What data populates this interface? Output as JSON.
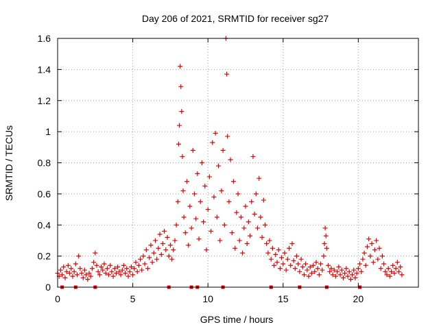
{
  "chart_data": {
    "type": "scatter",
    "title": "Day 206 of 2021, SRMTID for receiver sg27",
    "xlabel": "GPS time / hours",
    "ylabel": "SRMTID / TECUs",
    "xlim": [
      0,
      24
    ],
    "ylim": [
      0,
      1.6
    ],
    "xticks": [
      0,
      5,
      10,
      15,
      20
    ],
    "xtick_labels": [
      "0",
      "5",
      "10",
      "15",
      "20"
    ],
    "yticks": [
      0,
      0.2,
      0.4,
      0.6,
      0.8,
      1.0,
      1.2,
      1.4,
      1.6
    ],
    "ytick_labels": [
      "0",
      "0.2",
      "0.4",
      "0.6",
      "0.8",
      "1",
      "1.2",
      "1.4",
      "1.6"
    ],
    "grid": true,
    "marker": "plus",
    "series": [
      {
        "name": "SRMTID",
        "color": "#e00000",
        "points": [
          [
            0.0,
            0.09
          ],
          [
            0.1,
            0.07
          ],
          [
            0.2,
            0.11
          ],
          [
            0.3,
            0.08
          ],
          [
            0.4,
            0.13
          ],
          [
            0.5,
            0.06
          ],
          [
            0.6,
            0.1
          ],
          [
            0.7,
            0.14
          ],
          [
            0.8,
            0.09
          ],
          [
            0.9,
            0.12
          ],
          [
            1.0,
            0.07
          ],
          [
            1.1,
            0.1
          ],
          [
            1.2,
            0.15
          ],
          [
            1.3,
            0.08
          ],
          [
            1.4,
            0.2
          ],
          [
            1.5,
            0.12
          ],
          [
            1.6,
            0.09
          ],
          [
            1.7,
            0.06
          ],
          [
            1.8,
            0.11
          ],
          [
            1.9,
            0.08
          ],
          [
            2.0,
            0.05
          ],
          [
            2.1,
            0.09
          ],
          [
            2.2,
            0.07
          ],
          [
            2.3,
            0.12
          ],
          [
            2.4,
            0.16
          ],
          [
            2.5,
            0.22
          ],
          [
            2.6,
            0.14
          ],
          [
            2.7,
            0.1
          ],
          [
            2.8,
            0.08
          ],
          [
            2.9,
            0.13
          ],
          [
            3.0,
            0.11
          ],
          [
            3.1,
            0.15
          ],
          [
            3.2,
            0.09
          ],
          [
            3.3,
            0.12
          ],
          [
            3.4,
            0.08
          ],
          [
            3.5,
            0.14
          ],
          [
            3.6,
            0.1
          ],
          [
            3.7,
            0.07
          ],
          [
            3.8,
            0.12
          ],
          [
            3.9,
            0.09
          ],
          [
            4.0,
            0.13
          ],
          [
            4.1,
            0.1
          ],
          [
            4.2,
            0.08
          ],
          [
            4.3,
            0.11
          ],
          [
            4.4,
            0.14
          ],
          [
            4.5,
            0.09
          ],
          [
            4.6,
            0.12
          ],
          [
            4.7,
            0.07
          ],
          [
            4.8,
            0.1
          ],
          [
            4.9,
            0.13
          ],
          [
            5.0,
            0.08
          ],
          [
            5.1,
            0.12
          ],
          [
            5.2,
            0.16
          ],
          [
            5.3,
            0.1
          ],
          [
            5.4,
            0.14
          ],
          [
            5.5,
            0.18
          ],
          [
            5.6,
            0.11
          ],
          [
            5.7,
            0.2
          ],
          [
            5.8,
            0.15
          ],
          [
            5.9,
            0.24
          ],
          [
            6.0,
            0.12
          ],
          [
            6.1,
            0.19
          ],
          [
            6.2,
            0.27
          ],
          [
            6.3,
            0.16
          ],
          [
            6.4,
            0.22
          ],
          [
            6.5,
            0.3
          ],
          [
            6.6,
            0.18
          ],
          [
            6.7,
            0.25
          ],
          [
            6.8,
            0.34
          ],
          [
            6.9,
            0.21
          ],
          [
            7.0,
            0.28
          ],
          [
            7.1,
            0.36
          ],
          [
            7.2,
            0.24
          ],
          [
            7.3,
            0.32
          ],
          [
            7.4,
            0.2
          ],
          [
            7.5,
            0.27
          ],
          [
            7.6,
            0.18
          ],
          [
            7.7,
            0.24
          ],
          [
            7.8,
            0.3
          ],
          [
            7.9,
            0.4
          ],
          [
            8.0,
            0.55
          ],
          [
            8.05,
            0.92
          ],
          [
            8.1,
            1.04
          ],
          [
            8.15,
            1.42
          ],
          [
            8.2,
            1.29
          ],
          [
            8.25,
            1.13
          ],
          [
            8.3,
            0.84
          ],
          [
            8.35,
            0.62
          ],
          [
            8.4,
            0.45
          ],
          [
            8.5,
            0.35
          ],
          [
            8.6,
            0.68
          ],
          [
            8.7,
            0.27
          ],
          [
            8.8,
            0.52
          ],
          [
            8.9,
            0.38
          ],
          [
            9.0,
            0.88
          ],
          [
            9.1,
            0.6
          ],
          [
            9.2,
            0.44
          ],
          [
            9.3,
            0.73
          ],
          [
            9.4,
            0.31
          ],
          [
            9.5,
            0.55
          ],
          [
            9.6,
            0.8
          ],
          [
            9.7,
            0.42
          ],
          [
            9.8,
            0.65
          ],
          [
            9.9,
            0.24
          ],
          [
            10.0,
            0.5
          ],
          [
            10.1,
            0.71
          ],
          [
            10.2,
            0.36
          ],
          [
            10.3,
            0.93
          ],
          [
            10.4,
            0.58
          ],
          [
            10.5,
            0.99
          ],
          [
            10.6,
            0.45
          ],
          [
            10.7,
            0.78
          ],
          [
            10.8,
            0.3
          ],
          [
            10.9,
            0.62
          ],
          [
            11.0,
            0.88
          ],
          [
            11.1,
            0.4
          ],
          [
            11.2,
            1.6
          ],
          [
            11.25,
            1.37
          ],
          [
            11.3,
            0.97
          ],
          [
            11.4,
            0.55
          ],
          [
            11.5,
            0.82
          ],
          [
            11.6,
            0.35
          ],
          [
            11.7,
            0.68
          ],
          [
            11.8,
            0.25
          ],
          [
            11.9,
            0.48
          ],
          [
            12.0,
            0.6
          ],
          [
            12.1,
            0.3
          ],
          [
            12.2,
            0.45
          ],
          [
            12.3,
            0.22
          ],
          [
            12.4,
            0.38
          ],
          [
            12.5,
            0.52
          ],
          [
            12.6,
            0.28
          ],
          [
            12.7,
            0.42
          ],
          [
            12.8,
            0.33
          ],
          [
            12.9,
            0.55
          ],
          [
            13.0,
            0.84
          ],
          [
            13.1,
            0.47
          ],
          [
            13.2,
            0.6
          ],
          [
            13.3,
            0.38
          ],
          [
            13.4,
            0.7
          ],
          [
            13.5,
            0.45
          ],
          [
            13.6,
            0.32
          ],
          [
            13.7,
            0.56
          ],
          [
            13.8,
            0.4
          ],
          [
            13.9,
            0.28
          ],
          [
            14.0,
            0.22
          ],
          [
            14.1,
            0.3
          ],
          [
            14.2,
            0.18
          ],
          [
            14.3,
            0.25
          ],
          [
            14.4,
            0.14
          ],
          [
            14.5,
            0.21
          ],
          [
            14.6,
            0.16
          ],
          [
            14.7,
            0.24
          ],
          [
            14.8,
            0.12
          ],
          [
            14.9,
            0.19
          ],
          [
            15.0,
            0.15
          ],
          [
            15.1,
            0.22
          ],
          [
            15.2,
            0.11
          ],
          [
            15.3,
            0.18
          ],
          [
            15.4,
            0.25
          ],
          [
            15.5,
            0.14
          ],
          [
            15.6,
            0.28
          ],
          [
            15.7,
            0.17
          ],
          [
            15.8,
            0.12
          ],
          [
            15.9,
            0.2
          ],
          [
            16.0,
            0.15
          ],
          [
            16.1,
            0.1
          ],
          [
            16.2,
            0.18
          ],
          [
            16.3,
            0.13
          ],
          [
            16.4,
            0.08
          ],
          [
            16.5,
            0.15
          ],
          [
            16.6,
            0.11
          ],
          [
            16.7,
            0.07
          ],
          [
            16.8,
            0.13
          ],
          [
            16.9,
            0.09
          ],
          [
            17.0,
            0.14
          ],
          [
            17.1,
            0.1
          ],
          [
            17.2,
            0.16
          ],
          [
            17.3,
            0.12
          ],
          [
            17.4,
            0.08
          ],
          [
            17.5,
            0.15
          ],
          [
            17.6,
            0.11
          ],
          [
            17.7,
            0.2
          ],
          [
            17.75,
            0.28
          ],
          [
            17.8,
            0.38
          ],
          [
            17.85,
            0.33
          ],
          [
            17.9,
            0.25
          ],
          [
            18.0,
            0.14
          ],
          [
            18.1,
            0.1
          ],
          [
            18.2,
            0.12
          ],
          [
            18.3,
            0.08
          ],
          [
            18.4,
            0.11
          ],
          [
            18.5,
            0.07
          ],
          [
            18.6,
            0.1
          ],
          [
            18.7,
            0.13
          ],
          [
            18.8,
            0.08
          ],
          [
            18.9,
            0.11
          ],
          [
            19.0,
            0.06
          ],
          [
            19.1,
            0.09
          ],
          [
            19.2,
            0.12
          ],
          [
            19.3,
            0.07
          ],
          [
            19.4,
            0.1
          ],
          [
            19.5,
            0.05
          ],
          [
            19.6,
            0.08
          ],
          [
            19.7,
            0.11
          ],
          [
            19.8,
            0.06
          ],
          [
            19.9,
            0.09
          ],
          [
            20.0,
            0.12
          ],
          [
            20.1,
            0.15
          ],
          [
            20.2,
            0.1
          ],
          [
            20.3,
            0.18
          ],
          [
            20.4,
            0.22
          ],
          [
            20.5,
            0.14
          ],
          [
            20.6,
            0.26
          ],
          [
            20.7,
            0.31
          ],
          [
            20.8,
            0.2
          ],
          [
            20.9,
            0.28
          ],
          [
            21.0,
            0.16
          ],
          [
            21.1,
            0.24
          ],
          [
            21.2,
            0.3
          ],
          [
            21.3,
            0.18
          ],
          [
            21.4,
            0.25
          ],
          [
            21.5,
            0.12
          ],
          [
            21.6,
            0.2
          ],
          [
            21.7,
            0.15
          ],
          [
            21.8,
            0.1
          ],
          [
            21.9,
            0.08
          ],
          [
            22.0,
            0.12
          ],
          [
            22.1,
            0.07
          ],
          [
            22.2,
            0.1
          ],
          [
            22.3,
            0.14
          ],
          [
            22.4,
            0.09
          ],
          [
            22.5,
            0.12
          ],
          [
            22.6,
            0.16
          ],
          [
            22.7,
            0.1
          ],
          [
            22.8,
            0.13
          ],
          [
            22.9,
            0.08
          ]
        ]
      },
      {
        "name": "zero markers",
        "color": "#e00000",
        "points": [
          [
            0.3,
            0
          ],
          [
            1.2,
            0
          ],
          [
            2.5,
            0
          ],
          [
            7.4,
            0
          ],
          [
            8.9,
            0
          ],
          [
            9.3,
            0
          ],
          [
            11.0,
            0
          ],
          [
            14.2,
            0
          ],
          [
            16.1,
            0
          ],
          [
            17.9,
            0
          ],
          [
            20.1,
            0
          ]
        ]
      }
    ]
  }
}
